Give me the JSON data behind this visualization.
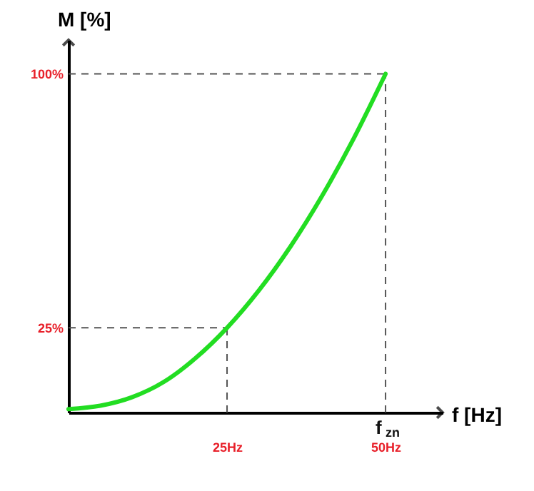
{
  "chart_data": {
    "type": "line",
    "xlabel": "f [Hz]",
    "ylabel": "M [%]",
    "x": [
      0,
      5,
      10,
      15,
      20,
      25,
      30,
      35,
      40,
      45,
      50
    ],
    "series": [
      {
        "color": "#22dd22",
        "values": [
          1,
          2,
          4.5,
          9,
          16,
          25,
          36,
          49,
          64,
          81,
          100
        ]
      }
    ],
    "xlim": [
      0,
      59
    ],
    "ylim": [
      0,
      110
    ],
    "xticks": [
      {
        "value": 25,
        "label": "25Hz"
      },
      {
        "value": 50,
        "label": "50Hz"
      }
    ],
    "yticks": [
      {
        "value": 25,
        "label": "25%"
      },
      {
        "value": 100,
        "label": "100%"
      }
    ],
    "ref_lines": [
      {
        "axis": "x",
        "value": 25,
        "line_style": "dashed"
      },
      {
        "axis": "y",
        "value": 25,
        "line_style": "dashed"
      },
      {
        "axis": "x",
        "value": 50,
        "line_style": "dashed"
      },
      {
        "axis": "y",
        "value": 100,
        "line_style": "dashed"
      }
    ],
    "annotations": [
      "f$_{zn}$"
    ],
    "grid": false,
    "marker": "none",
    "line_style": "solid"
  }
}
